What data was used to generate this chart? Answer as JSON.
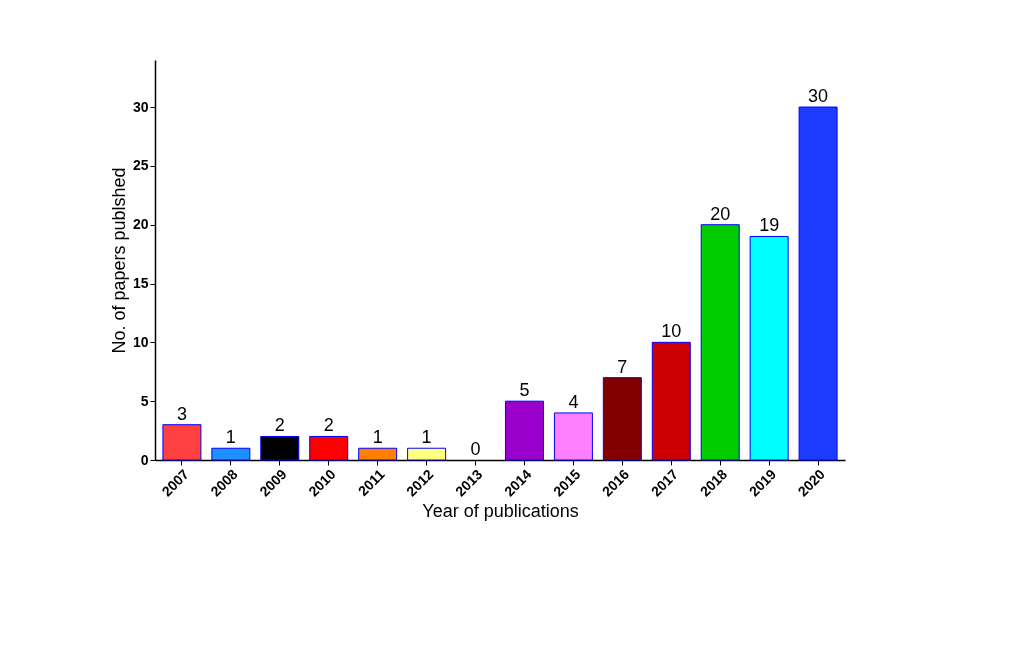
{
  "chart_data": {
    "type": "bar",
    "xlabel": "Year of publications",
    "ylabel": "No. of papers publshed",
    "categories": [
      "2007",
      "2008",
      "2009",
      "2010",
      "2011",
      "2012",
      "2013",
      "2014",
      "2015",
      "2016",
      "2017",
      "2018",
      "2019",
      "2020"
    ],
    "values": [
      3,
      1,
      2,
      2,
      1,
      1,
      0,
      5,
      4,
      7,
      10,
      20,
      19,
      30
    ],
    "colors": [
      "#ff4040",
      "#1e90ff",
      "#000000",
      "#ff0000",
      "#ff8000",
      "#ffff80",
      null,
      "#9900cc",
      "#ff80ff",
      "#800000",
      "#cc0000",
      "#00cc00",
      "#00ffff",
      "#1e3cff"
    ],
    "ylim": [
      0,
      34
    ],
    "yticks": [
      0,
      5,
      10,
      15,
      20,
      25,
      30
    ],
    "data_labels": true,
    "grid": false
  }
}
